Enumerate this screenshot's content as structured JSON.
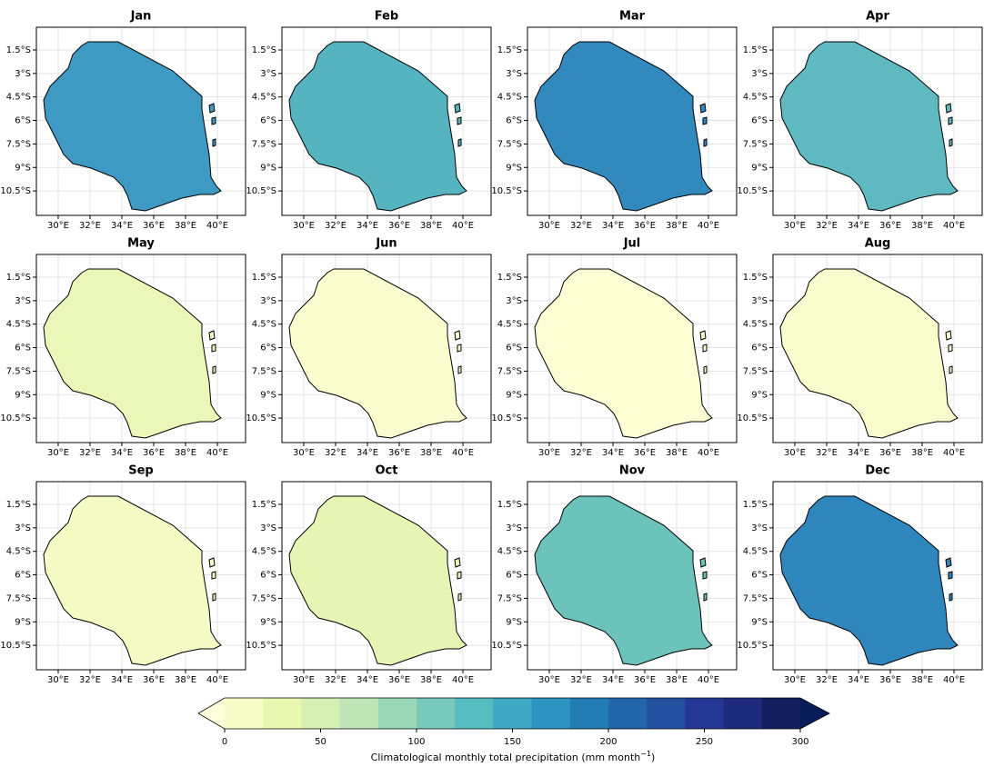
{
  "map": {
    "xlim": [
      28.63,
      41.77
    ],
    "ylim": [
      -12.06,
      -0.05
    ],
    "lon_ticks": [
      {
        "value": 30,
        "label": "30°E"
      },
      {
        "value": 32,
        "label": "32°E"
      },
      {
        "value": 34,
        "label": "34°E"
      },
      {
        "value": 36,
        "label": "36°E"
      },
      {
        "value": 38,
        "label": "38°E"
      },
      {
        "value": 40,
        "label": "40°E"
      }
    ],
    "lat_ticks": [
      {
        "value": -1.5,
        "label": "1.5°S"
      },
      {
        "value": -3,
        "label": "3°S"
      },
      {
        "value": -4.5,
        "label": "4.5°S"
      },
      {
        "value": -6,
        "label": "6°S"
      },
      {
        "value": -7.5,
        "label": "7.5°S"
      },
      {
        "value": -9,
        "label": "9°S"
      },
      {
        "value": -10.5,
        "label": "10.5°S"
      }
    ],
    "grid": true
  },
  "panels": [
    {
      "title": "Jan",
      "fill": "#3e9ac2"
    },
    {
      "title": "Feb",
      "fill": "#56b3c0"
    },
    {
      "title": "Mar",
      "fill": "#3189be"
    },
    {
      "title": "Apr",
      "fill": "#5fb9c0"
    },
    {
      "title": "May",
      "fill": "#eaf7b8"
    },
    {
      "title": "Jun",
      "fill": "#fbfdcf"
    },
    {
      "title": "Jul",
      "fill": "#fdfed4"
    },
    {
      "title": "Aug",
      "fill": "#f9fccc"
    },
    {
      "title": "Sep",
      "fill": "#f5fbc4"
    },
    {
      "title": "Oct",
      "fill": "#e6f5b4"
    },
    {
      "title": "Nov",
      "fill": "#6cc3bc"
    },
    {
      "title": "Dec",
      "fill": "#2f86bc"
    }
  ],
  "colorbar": {
    "label": "Climatological monthly total precipitation (mm month",
    "label_exponent": "−1",
    "label_end": ")",
    "lim": [
      0,
      300
    ],
    "ticks": [
      0,
      50,
      100,
      150,
      200,
      250,
      300
    ],
    "levels": [
      0,
      20,
      40,
      60,
      80,
      100,
      120,
      140,
      160,
      180,
      200,
      220,
      240,
      260,
      280,
      300
    ],
    "under_color": "#ffffd9",
    "colors": [
      "#f7fcc9",
      "#eaf7b1",
      "#d6efb3",
      "#bde5b5",
      "#9ad8b8",
      "#77cabb",
      "#56bdc1",
      "#3ea9c2",
      "#2c94c0",
      "#217cb4",
      "#2165aa",
      "#234f9f",
      "#253795",
      "#1e2a7b",
      "#121f5e"
    ],
    "over_color": "#081d58"
  }
}
